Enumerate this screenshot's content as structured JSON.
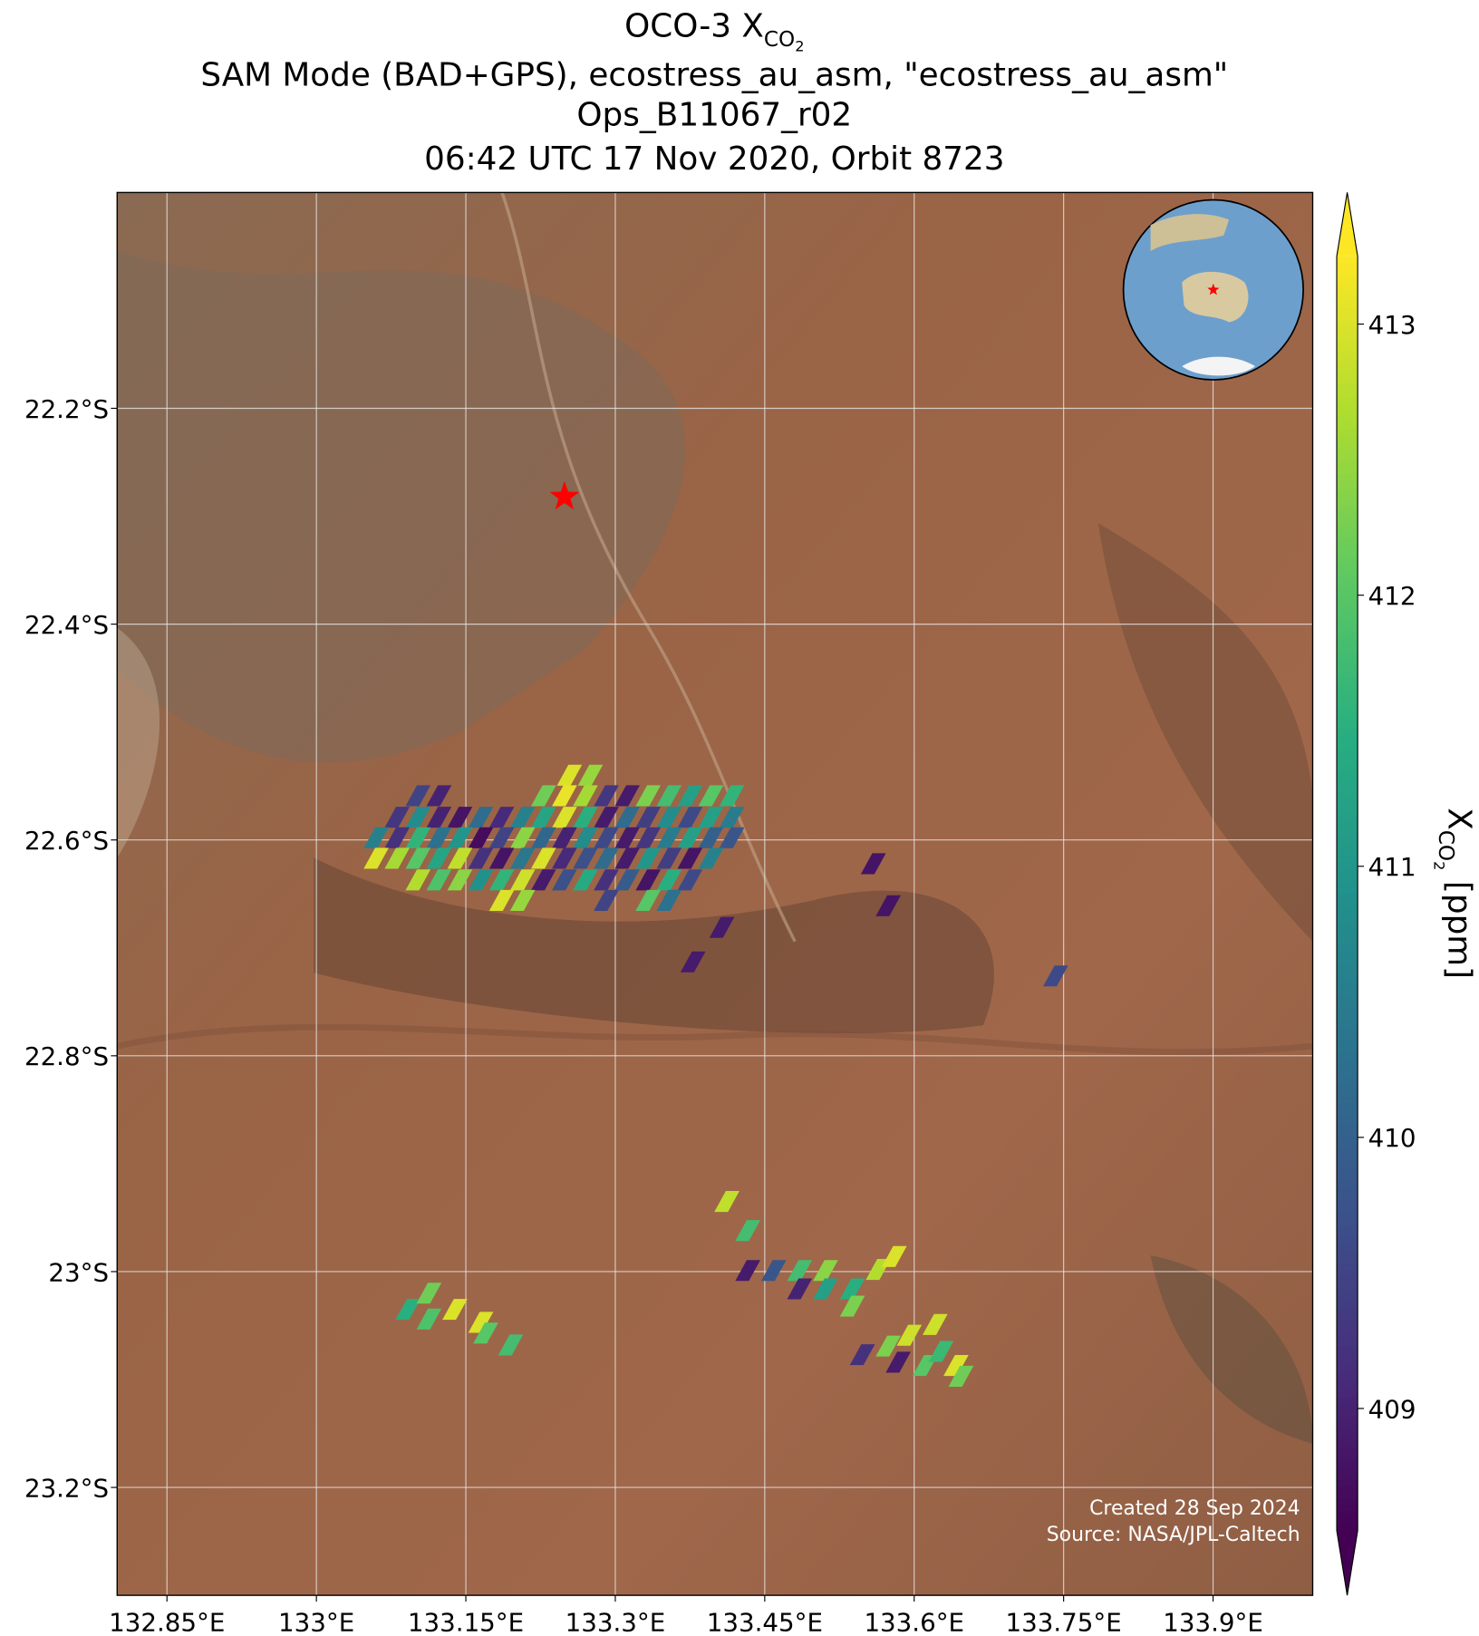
{
  "title": {
    "line1": {
      "text": "OCO-3 X",
      "sub": "CO",
      "sub2": "2"
    },
    "line2": "SAM Mode (BAD+GPS), ecostress_au_asm, \"ecostress_au_asm\"",
    "line3": "Ops_B11067_r02",
    "line4": "06:42 UTC 17 Nov 2020, Orbit 8723"
  },
  "map": {
    "xlim": [
      132.8,
      134.0
    ],
    "ylim": [
      -23.3,
      -22.0
    ],
    "grid": true,
    "xticks": [
      {
        "value": 132.85,
        "label": "132.85°E"
      },
      {
        "value": 133,
        "label": "133°E"
      },
      {
        "value": 133.15,
        "label": "133.15°E"
      },
      {
        "value": 133.3,
        "label": "133.3°E"
      },
      {
        "value": 133.45,
        "label": "133.45°E"
      },
      {
        "value": 133.6,
        "label": "133.6°E"
      },
      {
        "value": 133.75,
        "label": "133.75°E"
      },
      {
        "value": 133.9,
        "label": "133.9°E"
      }
    ],
    "yticks": [
      {
        "value": -22.2,
        "label": "22.2°S"
      },
      {
        "value": -22.4,
        "label": "22.4°S"
      },
      {
        "value": -22.6,
        "label": "22.6°S"
      },
      {
        "value": -22.8,
        "label": "22.8°S"
      },
      {
        "value": -23,
        "label": "23°S"
      },
      {
        "value": -23.2,
        "label": "23.2°S"
      }
    ],
    "target": {
      "lon": 133.249,
      "lat": -22.282,
      "color": "#ff0000"
    },
    "soundings": [
      {
        "lon": 133.254,
        "lat": -22.54,
        "xco2": 413.0
      },
      {
        "lon": 133.275,
        "lat": -22.54,
        "xco2": 412.5
      },
      {
        "lon": 133.102,
        "lat": -22.559,
        "xco2": 409.5
      },
      {
        "lon": 133.123,
        "lat": -22.559,
        "xco2": 409.0
      },
      {
        "lon": 133.228,
        "lat": -22.559,
        "xco2": 412.2
      },
      {
        "lon": 133.249,
        "lat": -22.559,
        "xco2": 413.1
      },
      {
        "lon": 133.27,
        "lat": -22.559,
        "xco2": 412.6
      },
      {
        "lon": 133.291,
        "lat": -22.559,
        "xco2": 409.3
      },
      {
        "lon": 133.312,
        "lat": -22.559,
        "xco2": 408.9
      },
      {
        "lon": 133.333,
        "lat": -22.559,
        "xco2": 412.3
      },
      {
        "lon": 133.354,
        "lat": -22.559,
        "xco2": 411.8
      },
      {
        "lon": 133.375,
        "lat": -22.559,
        "xco2": 411.2
      },
      {
        "lon": 133.396,
        "lat": -22.559,
        "xco2": 412.0
      },
      {
        "lon": 133.417,
        "lat": -22.559,
        "xco2": 411.6
      },
      {
        "lon": 133.081,
        "lat": -22.579,
        "xco2": 409.3
      },
      {
        "lon": 133.102,
        "lat": -22.579,
        "xco2": 410.8
      },
      {
        "lon": 133.123,
        "lat": -22.579,
        "xco2": 409.0
      },
      {
        "lon": 133.144,
        "lat": -22.579,
        "xco2": 408.8
      },
      {
        "lon": 133.165,
        "lat": -22.579,
        "xco2": 410.2
      },
      {
        "lon": 133.186,
        "lat": -22.579,
        "xco2": 409.1
      },
      {
        "lon": 133.207,
        "lat": -22.579,
        "xco2": 410.6
      },
      {
        "lon": 133.228,
        "lat": -22.579,
        "xco2": 411.3
      },
      {
        "lon": 133.249,
        "lat": -22.579,
        "xco2": 413.0
      },
      {
        "lon": 133.27,
        "lat": -22.579,
        "xco2": 411.5
      },
      {
        "lon": 133.291,
        "lat": -22.579,
        "xco2": 408.9
      },
      {
        "lon": 133.312,
        "lat": -22.579,
        "xco2": 410.2
      },
      {
        "lon": 133.333,
        "lat": -22.579,
        "xco2": 409.4
      },
      {
        "lon": 133.354,
        "lat": -22.579,
        "xco2": 410.8
      },
      {
        "lon": 133.375,
        "lat": -22.579,
        "xco2": 409.6
      },
      {
        "lon": 133.396,
        "lat": -22.579,
        "xco2": 411.2
      },
      {
        "lon": 133.417,
        "lat": -22.579,
        "xco2": 410.5
      },
      {
        "lon": 133.06,
        "lat": -22.598,
        "xco2": 410.6
      },
      {
        "lon": 133.081,
        "lat": -22.598,
        "xco2": 409.2
      },
      {
        "lon": 133.102,
        "lat": -22.598,
        "xco2": 411.6
      },
      {
        "lon": 133.123,
        "lat": -22.598,
        "xco2": 410.3
      },
      {
        "lon": 133.144,
        "lat": -22.598,
        "xco2": 411.0
      },
      {
        "lon": 133.165,
        "lat": -22.598,
        "xco2": 408.7
      },
      {
        "lon": 133.186,
        "lat": -22.598,
        "xco2": 409.5
      },
      {
        "lon": 133.207,
        "lat": -22.598,
        "xco2": 412.4
      },
      {
        "lon": 133.228,
        "lat": -22.598,
        "xco2": 410.1
      },
      {
        "lon": 133.249,
        "lat": -22.598,
        "xco2": 409.0
      },
      {
        "lon": 133.27,
        "lat": -22.598,
        "xco2": 410.8
      },
      {
        "lon": 133.291,
        "lat": -22.598,
        "xco2": 409.6
      },
      {
        "lon": 133.312,
        "lat": -22.598,
        "xco2": 408.9
      },
      {
        "lon": 133.333,
        "lat": -22.598,
        "xco2": 409.3
      },
      {
        "lon": 133.354,
        "lat": -22.598,
        "xco2": 410.5
      },
      {
        "lon": 133.375,
        "lat": -22.598,
        "xco2": 411.2
      },
      {
        "lon": 133.396,
        "lat": -22.598,
        "xco2": 410.0
      },
      {
        "lon": 133.417,
        "lat": -22.598,
        "xco2": 409.8
      },
      {
        "lon": 133.06,
        "lat": -22.617,
        "xco2": 413.0
      },
      {
        "lon": 133.081,
        "lat": -22.617,
        "xco2": 412.6
      },
      {
        "lon": 133.102,
        "lat": -22.617,
        "xco2": 412.0
      },
      {
        "lon": 133.123,
        "lat": -22.617,
        "xco2": 411.3
      },
      {
        "lon": 133.144,
        "lat": -22.617,
        "xco2": 412.8
      },
      {
        "lon": 133.165,
        "lat": -22.617,
        "xco2": 409.2
      },
      {
        "lon": 133.186,
        "lat": -22.617,
        "xco2": 408.8
      },
      {
        "lon": 133.207,
        "lat": -22.617,
        "xco2": 410.4
      },
      {
        "lon": 133.228,
        "lat": -22.617,
        "xco2": 413.0
      },
      {
        "lon": 133.249,
        "lat": -22.617,
        "xco2": 409.1
      },
      {
        "lon": 133.27,
        "lat": -22.617,
        "xco2": 409.7
      },
      {
        "lon": 133.291,
        "lat": -22.617,
        "xco2": 410.2
      },
      {
        "lon": 133.312,
        "lat": -22.617,
        "xco2": 408.9
      },
      {
        "lon": 133.333,
        "lat": -22.617,
        "xco2": 411.0
      },
      {
        "lon": 133.354,
        "lat": -22.617,
        "xco2": 409.4
      },
      {
        "lon": 133.375,
        "lat": -22.617,
        "xco2": 408.8
      },
      {
        "lon": 133.396,
        "lat": -22.617,
        "xco2": 410.6
      },
      {
        "lon": 133.102,
        "lat": -22.637,
        "xco2": 412.7
      },
      {
        "lon": 133.123,
        "lat": -22.637,
        "xco2": 411.9
      },
      {
        "lon": 133.144,
        "lat": -22.637,
        "xco2": 412.4
      },
      {
        "lon": 133.165,
        "lat": -22.637,
        "xco2": 410.9
      },
      {
        "lon": 133.186,
        "lat": -22.637,
        "xco2": 411.6
      },
      {
        "lon": 133.207,
        "lat": -22.637,
        "xco2": 412.9
      },
      {
        "lon": 133.228,
        "lat": -22.637,
        "xco2": 408.9
      },
      {
        "lon": 133.249,
        "lat": -22.637,
        "xco2": 409.7
      },
      {
        "lon": 133.27,
        "lat": -22.637,
        "xco2": 411.4
      },
      {
        "lon": 133.291,
        "lat": -22.637,
        "xco2": 409.2
      },
      {
        "lon": 133.312,
        "lat": -22.637,
        "xco2": 409.9
      },
      {
        "lon": 133.333,
        "lat": -22.637,
        "xco2": 408.8
      },
      {
        "lon": 133.354,
        "lat": -22.637,
        "xco2": 411.5
      },
      {
        "lon": 133.375,
        "lat": -22.637,
        "xco2": 409.6
      },
      {
        "lon": 133.186,
        "lat": -22.656,
        "xco2": 413.0
      },
      {
        "lon": 133.207,
        "lat": -22.656,
        "xco2": 412.5
      },
      {
        "lon": 133.291,
        "lat": -22.656,
        "xco2": 409.5
      },
      {
        "lon": 133.333,
        "lat": -22.656,
        "xco2": 412.0
      },
      {
        "lon": 133.354,
        "lat": -22.656,
        "xco2": 410.3
      },
      {
        "lon": 133.559,
        "lat": -22.622,
        "xco2": 408.8
      },
      {
        "lon": 133.574,
        "lat": -22.661,
        "xco2": 408.8
      },
      {
        "lon": 133.407,
        "lat": -22.681,
        "xco2": 408.9
      },
      {
        "lon": 133.378,
        "lat": -22.713,
        "xco2": 408.9
      },
      {
        "lon": 133.742,
        "lat": -22.726,
        "xco2": 409.6
      },
      {
        "lon": 133.412,
        "lat": -22.935,
        "xco2": 412.8
      },
      {
        "lon": 133.433,
        "lat": -22.962,
        "xco2": 411.8
      },
      {
        "lon": 133.433,
        "lat": -22.999,
        "xco2": 408.9
      },
      {
        "lon": 133.459,
        "lat": -22.999,
        "xco2": 409.8
      },
      {
        "lon": 133.485,
        "lat": -22.999,
        "xco2": 411.8
      },
      {
        "lon": 133.511,
        "lat": -22.999,
        "xco2": 412.4
      },
      {
        "lon": 133.485,
        "lat": -23.016,
        "xco2": 409.0
      },
      {
        "lon": 133.511,
        "lat": -23.016,
        "xco2": 411.2
      },
      {
        "lon": 133.538,
        "lat": -23.016,
        "xco2": 411.5
      },
      {
        "lon": 133.564,
        "lat": -22.998,
        "xco2": 412.7
      },
      {
        "lon": 133.58,
        "lat": -22.986,
        "xco2": 413.0
      },
      {
        "lon": 133.538,
        "lat": -23.032,
        "xco2": 412.3
      },
      {
        "lon": 133.092,
        "lat": -23.035,
        "xco2": 411.5
      },
      {
        "lon": 133.113,
        "lat": -23.02,
        "xco2": 412.2
      },
      {
        "lon": 133.113,
        "lat": -23.044,
        "xco2": 411.9
      },
      {
        "lon": 133.139,
        "lat": -23.035,
        "xco2": 413.0
      },
      {
        "lon": 133.165,
        "lat": -23.047,
        "xco2": 413.0
      },
      {
        "lon": 133.17,
        "lat": -23.057,
        "xco2": 412.0
      },
      {
        "lon": 133.195,
        "lat": -23.068,
        "xco2": 411.8
      },
      {
        "lon": 133.548,
        "lat": -23.077,
        "xco2": 409.2
      },
      {
        "lon": 133.574,
        "lat": -23.069,
        "xco2": 412.3
      },
      {
        "lon": 133.595,
        "lat": -23.059,
        "xco2": 412.9
      },
      {
        "lon": 133.621,
        "lat": -23.049,
        "xco2": 412.9
      },
      {
        "lon": 133.584,
        "lat": -23.084,
        "xco2": 408.9
      },
      {
        "lon": 133.611,
        "lat": -23.087,
        "xco2": 412.0
      },
      {
        "lon": 133.627,
        "lat": -23.074,
        "xco2": 411.7
      },
      {
        "lon": 133.642,
        "lat": -23.087,
        "xco2": 413.0
      },
      {
        "lon": 133.647,
        "lat": -23.097,
        "xco2": 412.2
      }
    ]
  },
  "colorbar": {
    "colormap": "viridis",
    "lim": [
      408.55,
      413.25
    ],
    "ticks": [
      409,
      410,
      411,
      412,
      413
    ],
    "label": {
      "text": "X",
      "sub": "CO",
      "sub2": "2",
      "unit": "[ppm]"
    }
  },
  "footer": [
    "Created 28 Sep 2024",
    "Source: NASA/JPL-Caltech"
  ]
}
